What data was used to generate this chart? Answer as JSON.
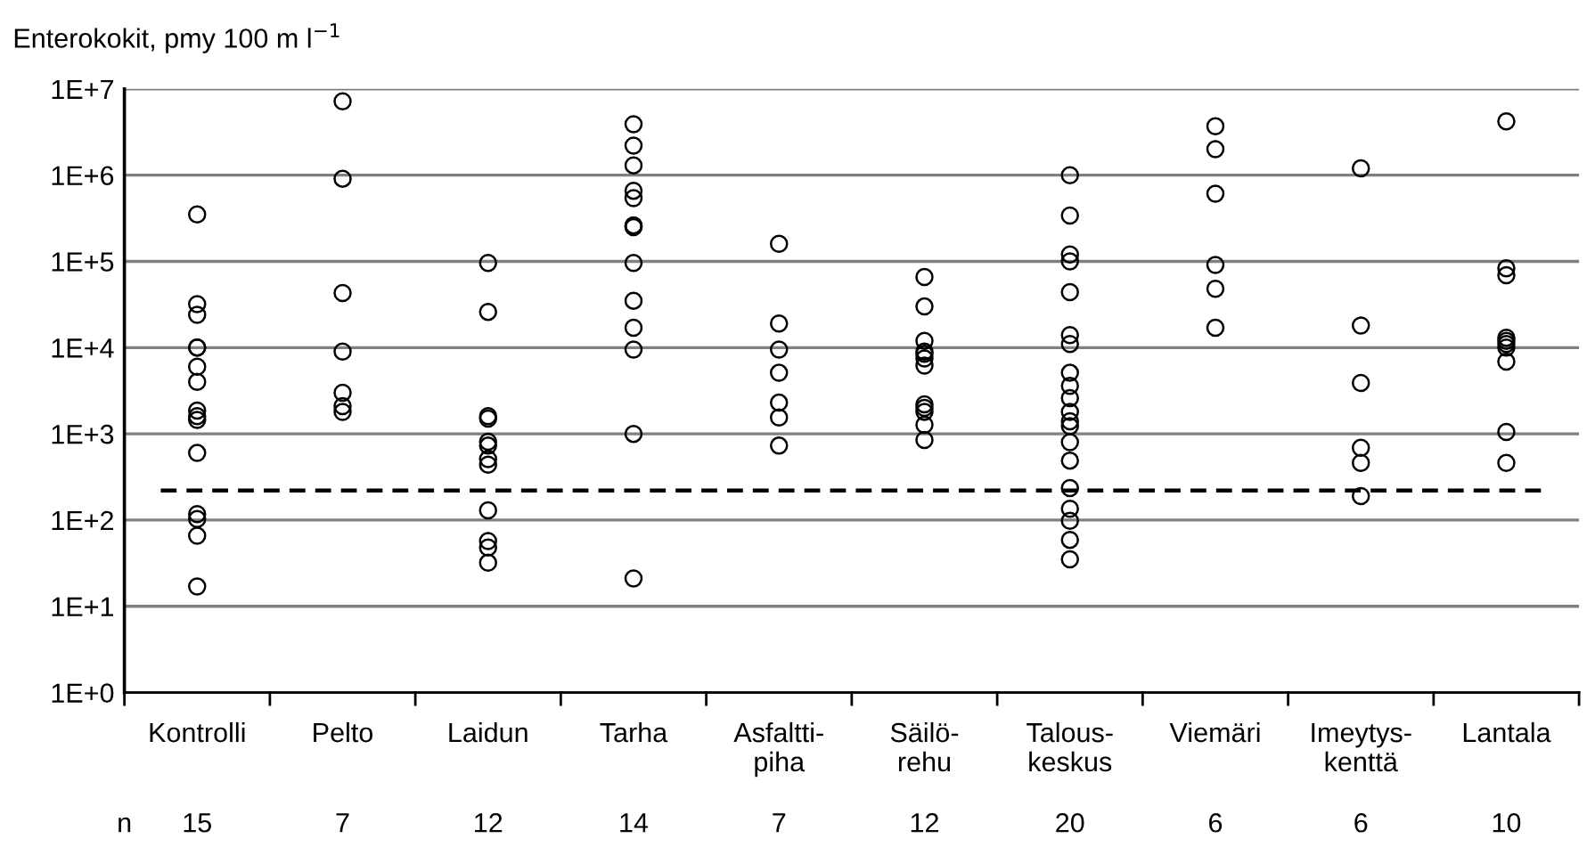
{
  "chart_data": {
    "type": "scatter",
    "ylabel": "Enterokokit, pmy 100 m l$^{−1}$",
    "categories": [
      "Kontrolli",
      "Pelto",
      "Laidun",
      "Tarha",
      "Asfaltti-\npiha",
      "Säilö-\nrehu",
      "Talous-\nkeskus",
      "Viemäri",
      "Imeytys-\nkenttä",
      "Lantala"
    ],
    "series": [
      {
        "color": "#000000",
        "x": [
          "Kontrolli",
          "Kontrolli",
          "Kontrolli",
          "Kontrolli",
          "Kontrolli",
          "Kontrolli",
          "Kontrolli",
          "Kontrolli",
          "Kontrolli",
          "Kontrolli",
          "Kontrolli",
          "Kontrolli",
          "Kontrolli",
          "Kontrolli",
          "Kontrolli",
          "Pelto",
          "Pelto",
          "Pelto",
          "Pelto",
          "Pelto",
          "Pelto",
          "Pelto",
          "Laidun",
          "Laidun",
          "Laidun",
          "Laidun",
          "Laidun",
          "Laidun",
          "Laidun",
          "Laidun",
          "Laidun",
          "Laidun",
          "Laidun",
          "Laidun",
          "Tarha",
          "Tarha",
          "Tarha",
          "Tarha",
          "Tarha",
          "Tarha",
          "Tarha",
          "Tarha",
          "Tarha",
          "Tarha",
          "Tarha",
          "Tarha",
          "Tarha",
          "Tarha",
          "Asfaltti-\npiha",
          "Asfaltti-\npiha",
          "Asfaltti-\npiha",
          "Asfaltti-\npiha",
          "Asfaltti-\npiha",
          "Asfaltti-\npiha",
          "Asfaltti-\npiha",
          "Säilö-\nrehu",
          "Säilö-\nrehu",
          "Säilö-\nrehu",
          "Säilö-\nrehu",
          "Säilö-\nrehu",
          "Säilö-\nrehu",
          "Säilö-\nrehu",
          "Säilö-\nrehu",
          "Säilö-\nrehu",
          "Säilö-\nrehu",
          "Säilö-\nrehu",
          "Säilö-\nrehu",
          "Talous-\nkeskus",
          "Talous-\nkeskus",
          "Talous-\nkeskus",
          "Talous-\nkeskus",
          "Talous-\nkeskus",
          "Talous-\nkeskus",
          "Talous-\nkeskus",
          "Talous-\nkeskus",
          "Talous-\nkeskus",
          "Talous-\nkeskus",
          "Talous-\nkeskus",
          "Talous-\nkeskus",
          "Talous-\nkeskus",
          "Talous-\nkeskus",
          "Talous-\nkeskus",
          "Talous-\nkeskus",
          "Talous-\nkeskus",
          "Talous-\nkeskus",
          "Talous-\nkeskus",
          "Talous-\nkeskus",
          "Viemäri",
          "Viemäri",
          "Viemäri",
          "Viemäri",
          "Viemäri",
          "Viemäri",
          "Imeytys-\nkenttä",
          "Imeytys-\nkenttä",
          "Imeytys-\nkenttä",
          "Imeytys-\nkenttä",
          "Imeytys-\nkenttä",
          "Imeytys-\nkenttä",
          "Lantala",
          "Lantala",
          "Lantala",
          "Lantala",
          "Lantala",
          "Lantala",
          "Lantala",
          "Lantala",
          "Lantala",
          "Lantala"
        ],
        "values": [
          350000,
          32000,
          24000,
          10000,
          10000,
          6000,
          4000,
          1860,
          1600,
          1450,
          600,
          117,
          103,
          66,
          17,
          7200000,
          910000,
          43000,
          9000,
          3000,
          2100,
          1800,
          96000,
          26000,
          1600,
          1500,
          810,
          730,
          510,
          440,
          130,
          57,
          48,
          32,
          3900000,
          2200000,
          1300000,
          660000,
          540000,
          260000,
          250000,
          260000,
          96000,
          35000,
          17000,
          9500,
          1000,
          21,
          160000,
          19000,
          9500,
          5100,
          2300,
          1550,
          730,
          66000,
          30000,
          12000,
          9000,
          8500,
          7500,
          6200,
          2200,
          2000,
          1800,
          1270,
          850,
          1000000,
          340000,
          120000,
          100000,
          44000,
          14000,
          11000,
          5100,
          3600,
          2600,
          1800,
          1400,
          1230,
          800,
          490,
          235,
          135,
          98,
          59,
          35,
          3700000,
          2000000,
          610000,
          91000,
          48000,
          17000,
          1200000,
          18000,
          3900,
          690,
          460,
          190,
          4200000,
          83000,
          69000,
          13000,
          12000,
          11000,
          10000,
          6900,
          1050,
          460
        ]
      }
    ],
    "log": "y",
    "ylim": [
      1,
      10000000
    ],
    "yticks": [
      {
        "value": 1,
        "label": "1E+0"
      },
      {
        "value": 10,
        "label": "1E+1"
      },
      {
        "value": 100,
        "label": "1E+2"
      },
      {
        "value": 1000,
        "label": "1E+3"
      },
      {
        "value": 10000,
        "label": "1E+4"
      },
      {
        "value": 100000,
        "label": "1E+5"
      },
      {
        "value": 1000000,
        "label": "1E+6"
      },
      {
        "value": 10000000,
        "label": "1E+7"
      }
    ],
    "grid": "y",
    "marker": "circle",
    "ref_lines": [
      {
        "axis": "y",
        "value": 220,
        "line_style": "dashed",
        "color": "#000000"
      }
    ],
    "annotations": [
      "n",
      "15",
      "7",
      "12",
      "14",
      "7",
      "12",
      "20",
      "6",
      "6",
      "10"
    ]
  }
}
